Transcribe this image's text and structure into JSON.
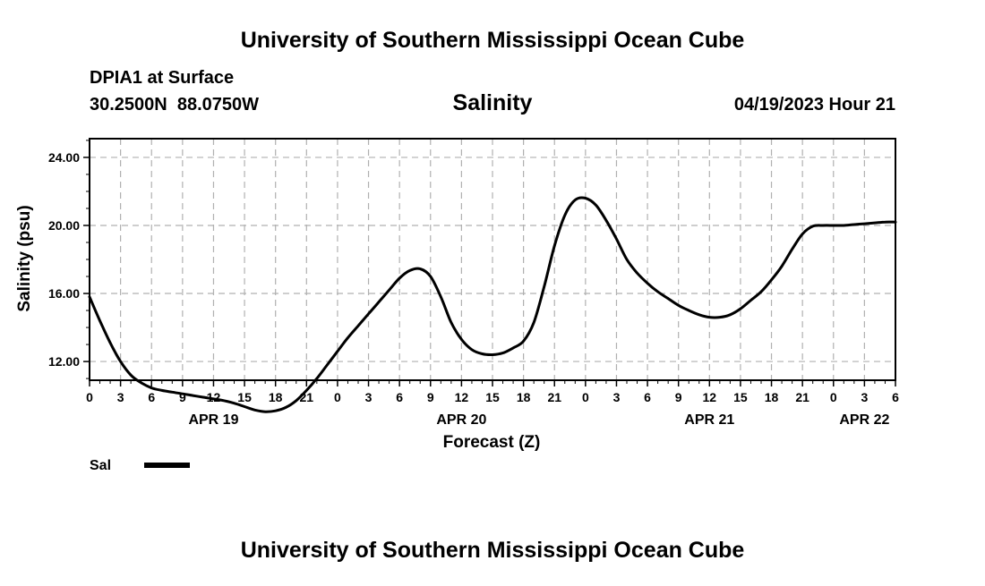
{
  "page": {
    "header_title": "University of Southern Mississippi Ocean Cube",
    "footer_title": "University of Southern Mississippi Ocean Cube",
    "station": "DPIA1 at Surface",
    "coordinates": "30.2500N  88.0750W",
    "plot_title": "Salinity",
    "timestamp": "04/19/2023 Hour 21"
  },
  "colors": {
    "line": "#000000",
    "grid": "#b0b0b0",
    "background": "#ffffff"
  },
  "chart_data": {
    "type": "line",
    "title": "Salinity",
    "xlabel": "Forecast (Z)",
    "ylabel": "Salinity (psu)",
    "xlim": [
      0,
      78
    ],
    "ylim": [
      10.9,
      25.1
    ],
    "grid": true,
    "x_ticks": [
      0,
      3,
      6,
      9,
      12,
      15,
      18,
      21,
      24,
      27,
      30,
      33,
      36,
      39,
      42,
      45,
      48,
      51,
      54,
      57,
      60,
      63,
      66,
      69,
      72,
      75,
      78
    ],
    "x_tick_labels": [
      "0",
      "3",
      "6",
      "9",
      "12",
      "15",
      "18",
      "21",
      "0",
      "3",
      "6",
      "9",
      "12",
      "15",
      "18",
      "21",
      "0",
      "3",
      "6",
      "9",
      "12",
      "15",
      "18",
      "21",
      "0",
      "3",
      "6"
    ],
    "y_ticks": [
      12,
      16,
      20,
      24
    ],
    "y_tick_labels": [
      "12.00",
      "16.00",
      "20.00",
      "24.00"
    ],
    "date_labels": [
      {
        "x": 12,
        "label": "APR 19"
      },
      {
        "x": 36,
        "label": "APR 20"
      },
      {
        "x": 60,
        "label": "APR 21"
      },
      {
        "x": 75,
        "label": "APR 22"
      }
    ],
    "legend": {
      "placement": "bottom-left",
      "label": "Sal"
    },
    "series": [
      {
        "name": "Sal",
        "x": [
          0,
          1,
          2,
          3,
          4,
          5,
          6,
          7,
          8,
          9,
          10,
          11,
          12,
          13,
          14,
          15,
          16,
          17,
          18,
          19,
          20,
          21,
          22,
          23,
          24,
          25,
          26,
          27,
          28,
          29,
          30,
          31,
          32,
          33,
          34,
          35,
          36,
          37,
          38,
          39,
          40,
          41,
          42,
          43,
          44,
          45,
          46,
          47,
          48,
          49,
          50,
          51,
          52,
          53,
          54,
          55,
          56,
          57,
          58,
          59,
          60,
          61,
          62,
          63,
          64,
          65,
          66,
          67,
          68,
          69,
          70,
          71,
          72,
          73,
          74,
          75,
          76,
          77,
          78
        ],
        "values": [
          15.8,
          14.4,
          13.1,
          12.0,
          11.2,
          10.75,
          10.45,
          10.3,
          10.2,
          10.1,
          10.0,
          9.9,
          9.8,
          9.7,
          9.55,
          9.35,
          9.15,
          9.05,
          9.1,
          9.3,
          9.7,
          10.3,
          11.0,
          11.8,
          12.6,
          13.4,
          14.1,
          14.8,
          15.5,
          16.2,
          16.9,
          17.35,
          17.45,
          17.0,
          15.8,
          14.3,
          13.3,
          12.7,
          12.45,
          12.4,
          12.5,
          12.8,
          13.2,
          14.3,
          16.4,
          18.8,
          20.6,
          21.5,
          21.6,
          21.2,
          20.3,
          19.2,
          18.0,
          17.2,
          16.6,
          16.1,
          15.7,
          15.3,
          15.0,
          14.75,
          14.6,
          14.6,
          14.75,
          15.1,
          15.6,
          16.1,
          16.8,
          17.6,
          18.6,
          19.5,
          19.95,
          20.0,
          20.0,
          20.0,
          20.05,
          20.1,
          20.15,
          20.2,
          20.2
        ]
      }
    ]
  }
}
